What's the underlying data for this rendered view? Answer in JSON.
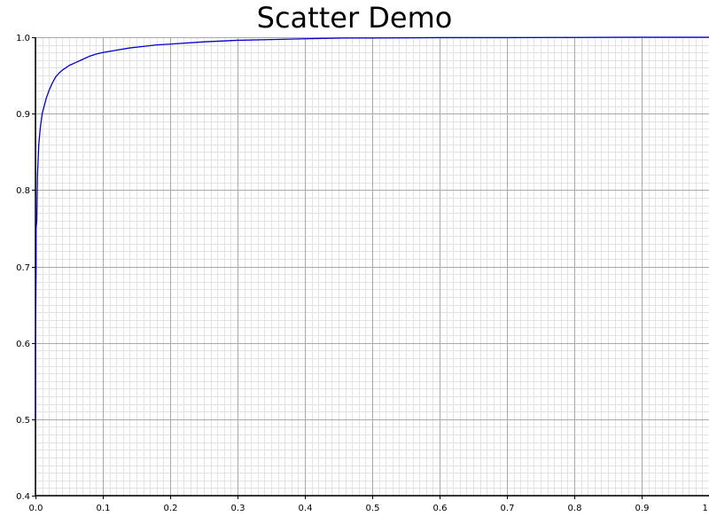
{
  "chart_data": {
    "type": "line",
    "title": "Scatter Demo",
    "xlabel": "",
    "ylabel": "",
    "xlim": [
      0.0,
      1.0
    ],
    "ylim": [
      0.4,
      1.0
    ],
    "grid": true,
    "x_major_ticks": [
      "0.0",
      "0.1",
      "0.2",
      "0.3",
      "0.4",
      "0.5",
      "0.6",
      "0.7",
      "0.8",
      "0.9",
      "1.0"
    ],
    "y_major_ticks": [
      "0.4",
      "0.5",
      "0.6",
      "0.7",
      "0.8",
      "0.9",
      "1.0"
    ],
    "colors": {
      "series": "#0000cc"
    },
    "series": [
      {
        "x": [
          0.0,
          0.0,
          0.001,
          0.001,
          0.002,
          0.003,
          0.004,
          0.005,
          0.007,
          0.01,
          0.013,
          0.016,
          0.02,
          0.025,
          0.03,
          0.035,
          0.04,
          0.05,
          0.06,
          0.07,
          0.08,
          0.09,
          0.1,
          0.12,
          0.14,
          0.16,
          0.18,
          0.2,
          0.25,
          0.3,
          0.35,
          0.4,
          0.46,
          0.5,
          0.6,
          0.7,
          0.8,
          0.88,
          0.9,
          1.0
        ],
        "y": [
          0.5,
          0.6,
          0.7,
          0.75,
          0.76,
          0.82,
          0.84,
          0.86,
          0.88,
          0.9,
          0.91,
          0.92,
          0.93,
          0.94,
          0.948,
          0.953,
          0.957,
          0.963,
          0.967,
          0.971,
          0.975,
          0.978,
          0.98,
          0.983,
          0.986,
          0.988,
          0.99,
          0.991,
          0.994,
          0.996,
          0.997,
          0.998,
          0.999,
          0.999,
          0.9995,
          0.9995,
          0.9997,
          1.0,
          1.0,
          1.0
        ]
      }
    ]
  }
}
